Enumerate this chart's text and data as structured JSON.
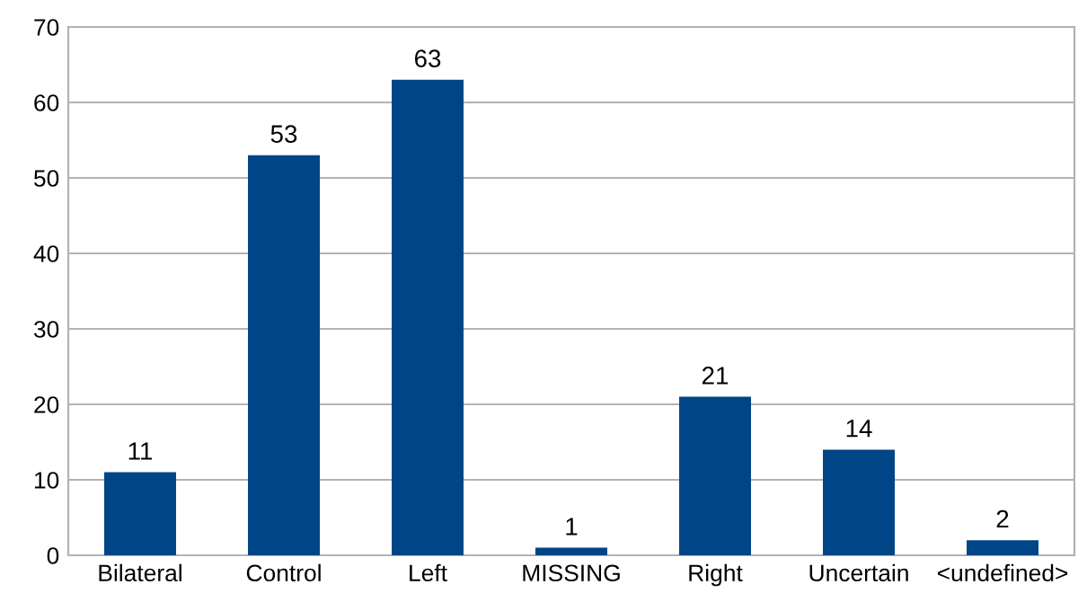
{
  "chart_data": {
    "type": "bar",
    "categories": [
      "Bilateral",
      "Control",
      "Left",
      "MISSING",
      "Right",
      "Uncertain",
      "<undefined>"
    ],
    "values": [
      11,
      53,
      63,
      1,
      21,
      14,
      2
    ],
    "color": "#004586",
    "ylim": [
      0,
      70
    ],
    "yticks": [
      0,
      10,
      20,
      30,
      40,
      50,
      60,
      70
    ],
    "grid": "y",
    "data_labels": true
  }
}
